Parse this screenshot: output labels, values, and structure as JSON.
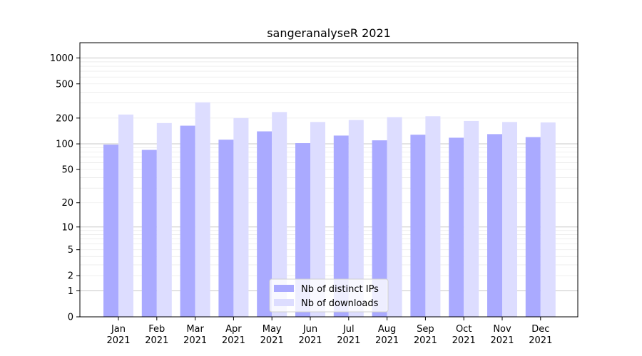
{
  "chart_data": {
    "type": "bar",
    "title": "sangeranalyseR 2021",
    "xlabel": "",
    "ylabel": "",
    "scale": "log1p",
    "ylim": [
      0,
      1500
    ],
    "yticks": [
      0,
      1,
      2,
      5,
      10,
      20,
      50,
      100,
      200,
      500,
      1000
    ],
    "categories": [
      "Jan\n2021",
      "Feb\n2021",
      "Mar\n2021",
      "Apr\n2021",
      "May\n2021",
      "Jun\n2021",
      "Jul\n2021",
      "Aug\n2021",
      "Sep\n2021",
      "Oct\n2021",
      "Nov\n2021",
      "Dec\n2021"
    ],
    "series": [
      {
        "name": "Nb of distinct IPs",
        "color": "#aaaaff",
        "values": [
          98,
          85,
          163,
          112,
          140,
          102,
          125,
          110,
          128,
          118,
          130,
          120
        ]
      },
      {
        "name": "Nb of downloads",
        "color": "#ddddff",
        "values": [
          220,
          175,
          305,
          200,
          235,
          180,
          190,
          205,
          210,
          185,
          180,
          178
        ]
      }
    ],
    "legend_position": "bottom-center",
    "grid": true
  }
}
